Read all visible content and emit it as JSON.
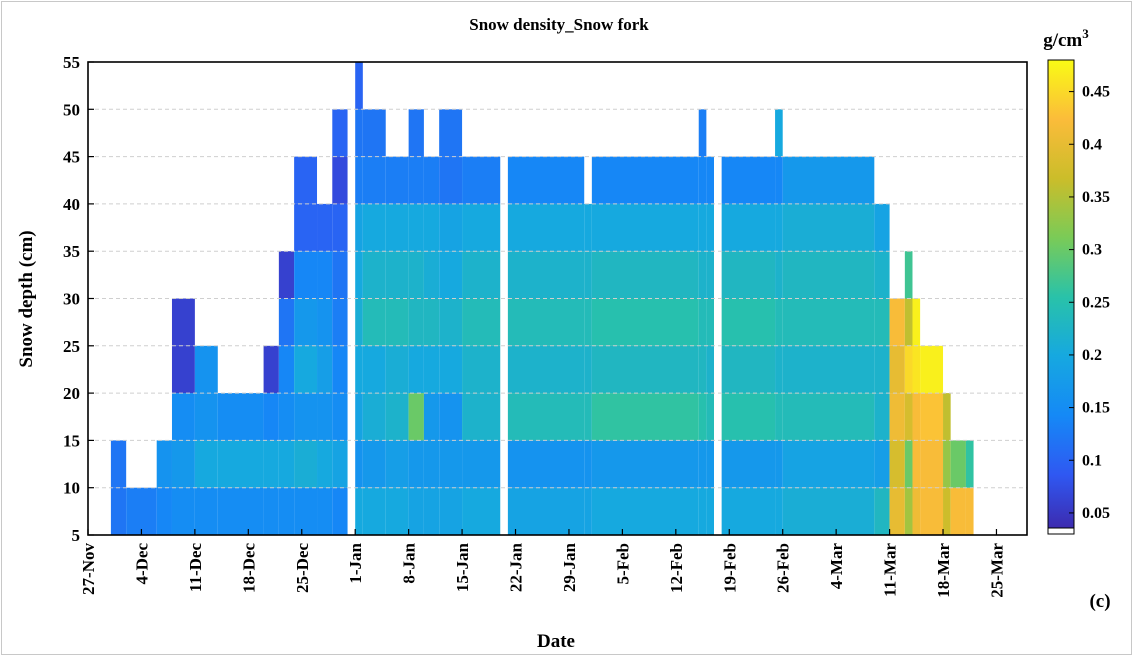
{
  "chart_data": {
    "type": "heatmap",
    "title": "Snow density_Snow fork",
    "xlabel": "Date",
    "ylabel": "Snow depth (cm)",
    "panel_label": "(c)",
    "colorbar": {
      "unit": "g/cm",
      "unit_sup": "3",
      "range": [
        0.03,
        0.48
      ],
      "ticks": [
        "0.05",
        "0.1",
        "0.15",
        "0.2",
        "0.25",
        "0.3",
        "0.35",
        "0.4",
        "0.45"
      ],
      "colormap": [
        "#3e26a8",
        "#2f58f2",
        "#1589f6",
        "#16a8e0",
        "#29c2a9",
        "#7acb57",
        "#cbbd2a",
        "#fbbc3a",
        "#f9fb15"
      ]
    },
    "x_ticks": [
      "27-Nov",
      "4-Dec",
      "11-Dec",
      "18-Dec",
      "25-Dec",
      "1-Jan",
      "8-Jan",
      "15-Jan",
      "22-Jan",
      "29-Jan",
      "5-Feb",
      "12-Feb",
      "19-Feb",
      "26-Feb",
      "4-Mar",
      "11-Mar",
      "18-Mar",
      "25-Mar"
    ],
    "y_ticks": [
      "5",
      "10",
      "15",
      "20",
      "25",
      "30",
      "35",
      "40",
      "45",
      "50",
      "55"
    ],
    "ylim": [
      5,
      55
    ],
    "x_day_range": [
      0,
      123
    ],
    "grid": "horizontal dashed",
    "layer_tops_cm": [
      10,
      15,
      20,
      25,
      30,
      35,
      40,
      45,
      50,
      55
    ],
    "segments": [
      {
        "start_day": 3,
        "end_day": 5,
        "top_cm": 15,
        "density": [
          0.12,
          0.12
        ]
      },
      {
        "start_day": 5,
        "end_day": 9,
        "top_cm": 10,
        "density": [
          0.13
        ]
      },
      {
        "start_day": 9,
        "end_day": 11,
        "top_cm": 15,
        "density": [
          0.14,
          0.16
        ]
      },
      {
        "start_day": 11,
        "end_day": 14,
        "top_cm": 30,
        "density": [
          0.15,
          0.17,
          0.15,
          0.06,
          0.06
        ]
      },
      {
        "start_day": 14,
        "end_day": 17,
        "top_cm": 25,
        "density": [
          0.15,
          0.2,
          0.16,
          0.16
        ]
      },
      {
        "start_day": 17,
        "end_day": 23,
        "top_cm": 20,
        "density": [
          0.15,
          0.2,
          0.15
        ]
      },
      {
        "start_day": 23,
        "end_day": 25,
        "top_cm": 25,
        "density": [
          0.15,
          0.2,
          0.14,
          0.06
        ]
      },
      {
        "start_day": 25,
        "end_day": 27,
        "top_cm": 35,
        "density": [
          0.15,
          0.2,
          0.15,
          0.14,
          0.12,
          0.06
        ]
      },
      {
        "start_day": 27,
        "end_day": 30,
        "top_cm": 45,
        "density": [
          0.15,
          0.21,
          0.16,
          0.2,
          0.17,
          0.14,
          0.1,
          0.1
        ]
      },
      {
        "start_day": 30,
        "end_day": 32,
        "top_cm": 40,
        "density": [
          0.15,
          0.2,
          0.16,
          0.18,
          0.16,
          0.14,
          0.1
        ]
      },
      {
        "start_day": 32,
        "end_day": 34,
        "top_cm": 50,
        "density": [
          0.14,
          0.19,
          0.15,
          0.14,
          0.13,
          0.12,
          0.1,
          0.07,
          0.1
        ]
      },
      {
        "start_day": 34,
        "end_day": 35,
        "top_cm": 0,
        "density": []
      },
      {
        "start_day": 35,
        "end_day": 36,
        "top_cm": 55,
        "density": [
          0.2,
          0.16,
          0.19,
          0.2,
          0.21,
          0.2,
          0.19,
          0.13,
          0.12,
          0.1
        ]
      },
      {
        "start_day": 36,
        "end_day": 39,
        "top_cm": 50,
        "density": [
          0.2,
          0.17,
          0.21,
          0.2,
          0.24,
          0.22,
          0.2,
          0.13,
          0.12
        ]
      },
      {
        "start_day": 39,
        "end_day": 42,
        "top_cm": 45,
        "density": [
          0.2,
          0.18,
          0.22,
          0.21,
          0.24,
          0.22,
          0.2,
          0.13
        ]
      },
      {
        "start_day": 42,
        "end_day": 44,
        "top_cm": 50,
        "density": [
          0.19,
          0.17,
          0.3,
          0.2,
          0.23,
          0.22,
          0.2,
          0.13,
          0.12
        ]
      },
      {
        "start_day": 44,
        "end_day": 46,
        "top_cm": 45,
        "density": [
          0.19,
          0.17,
          0.17,
          0.2,
          0.23,
          0.21,
          0.2,
          0.13
        ]
      },
      {
        "start_day": 46,
        "end_day": 49,
        "top_cm": 50,
        "density": [
          0.19,
          0.17,
          0.16,
          0.2,
          0.22,
          0.2,
          0.19,
          0.12,
          0.12
        ]
      },
      {
        "start_day": 49,
        "end_day": 54,
        "top_cm": 45,
        "density": [
          0.2,
          0.17,
          0.22,
          0.22,
          0.24,
          0.22,
          0.2,
          0.13
        ]
      },
      {
        "start_day": 54,
        "end_day": 55,
        "top_cm": 0,
        "density": []
      },
      {
        "start_day": 55,
        "end_day": 65,
        "top_cm": 45,
        "density": [
          0.19,
          0.16,
          0.24,
          0.22,
          0.24,
          0.22,
          0.2,
          0.14
        ]
      },
      {
        "start_day": 65,
        "end_day": 66,
        "top_cm": 40,
        "density": [
          0.19,
          0.16,
          0.24,
          0.22,
          0.24,
          0.22,
          0.2
        ]
      },
      {
        "start_day": 66,
        "end_day": 80,
        "top_cm": 45,
        "density": [
          0.2,
          0.17,
          0.26,
          0.23,
          0.25,
          0.23,
          0.2,
          0.14
        ]
      },
      {
        "start_day": 80,
        "end_day": 81,
        "top_cm": 50,
        "density": [
          0.2,
          0.17,
          0.25,
          0.23,
          0.24,
          0.22,
          0.2,
          0.14,
          0.13
        ]
      },
      {
        "start_day": 81,
        "end_day": 82,
        "top_cm": 45,
        "density": [
          0.2,
          0.17,
          0.24,
          0.22,
          0.24,
          0.22,
          0.2,
          0.14
        ]
      },
      {
        "start_day": 82,
        "end_day": 83,
        "top_cm": 0,
        "density": []
      },
      {
        "start_day": 83,
        "end_day": 90,
        "top_cm": 45,
        "density": [
          0.2,
          0.17,
          0.25,
          0.23,
          0.25,
          0.23,
          0.2,
          0.14
        ]
      },
      {
        "start_day": 90,
        "end_day": 91,
        "top_cm": 50,
        "density": [
          0.2,
          0.17,
          0.24,
          0.22,
          0.24,
          0.22,
          0.2,
          0.14,
          0.2
        ]
      },
      {
        "start_day": 91,
        "end_day": 103,
        "top_cm": 45,
        "density": [
          0.21,
          0.19,
          0.24,
          0.22,
          0.24,
          0.23,
          0.21,
          0.17
        ]
      },
      {
        "start_day": 103,
        "end_day": 105,
        "top_cm": 40,
        "density": [
          0.23,
          0.18,
          0.22,
          0.22,
          0.24,
          0.22,
          0.19
        ]
      },
      {
        "start_day": 105,
        "end_day": 107,
        "top_cm": 30,
        "density": [
          0.4,
          0.38,
          0.41,
          0.4,
          0.42
        ]
      },
      {
        "start_day": 107,
        "end_day": 108,
        "top_cm": 35,
        "density": [
          0.34,
          0.3,
          0.38,
          0.45,
          0.36,
          0.27
        ]
      },
      {
        "start_day": 108,
        "end_day": 109,
        "top_cm": 30,
        "density": [
          0.41,
          0.42,
          0.42,
          0.46,
          0.47
        ]
      },
      {
        "start_day": 109,
        "end_day": 112,
        "top_cm": 25,
        "density": [
          0.42,
          0.42,
          0.43,
          0.47
        ]
      },
      {
        "start_day": 112,
        "end_day": 113,
        "top_cm": 20,
        "density": [
          0.37,
          0.33,
          0.36
        ]
      },
      {
        "start_day": 113,
        "end_day": 115,
        "top_cm": 15,
        "density": [
          0.42,
          0.3
        ]
      },
      {
        "start_day": 115,
        "end_day": 116,
        "top_cm": 15,
        "density": [
          0.42,
          0.26
        ]
      }
    ]
  }
}
